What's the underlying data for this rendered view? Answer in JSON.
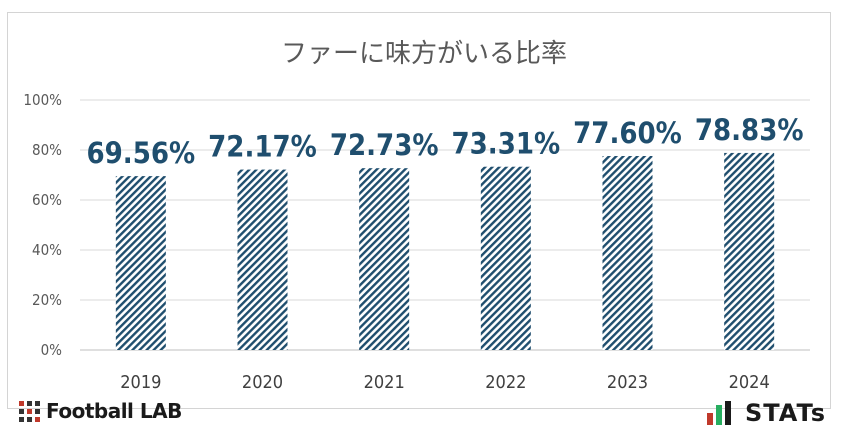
{
  "chart_data": {
    "type": "bar",
    "title": "ファーに味方がいる比率",
    "categories": [
      "2019",
      "2020",
      "2021",
      "2022",
      "2023",
      "2024"
    ],
    "values": [
      69.56,
      72.17,
      72.73,
      73.31,
      77.6,
      78.83
    ],
    "data_labels": [
      "69.56%",
      "72.17%",
      "72.73%",
      "73.31%",
      "77.60%",
      "78.83%"
    ],
    "y_ticks": [
      "0%",
      "20%",
      "40%",
      "60%",
      "80%",
      "100%"
    ],
    "ylim": [
      0,
      100
    ],
    "grid": true,
    "bar_pattern": "diagonal-hatch",
    "bar_color": "#1f4e6e",
    "label_color": "#1f4e6e"
  },
  "footer": {
    "left_logo_text": "Football LAB",
    "right_logo_text": "STATs"
  }
}
